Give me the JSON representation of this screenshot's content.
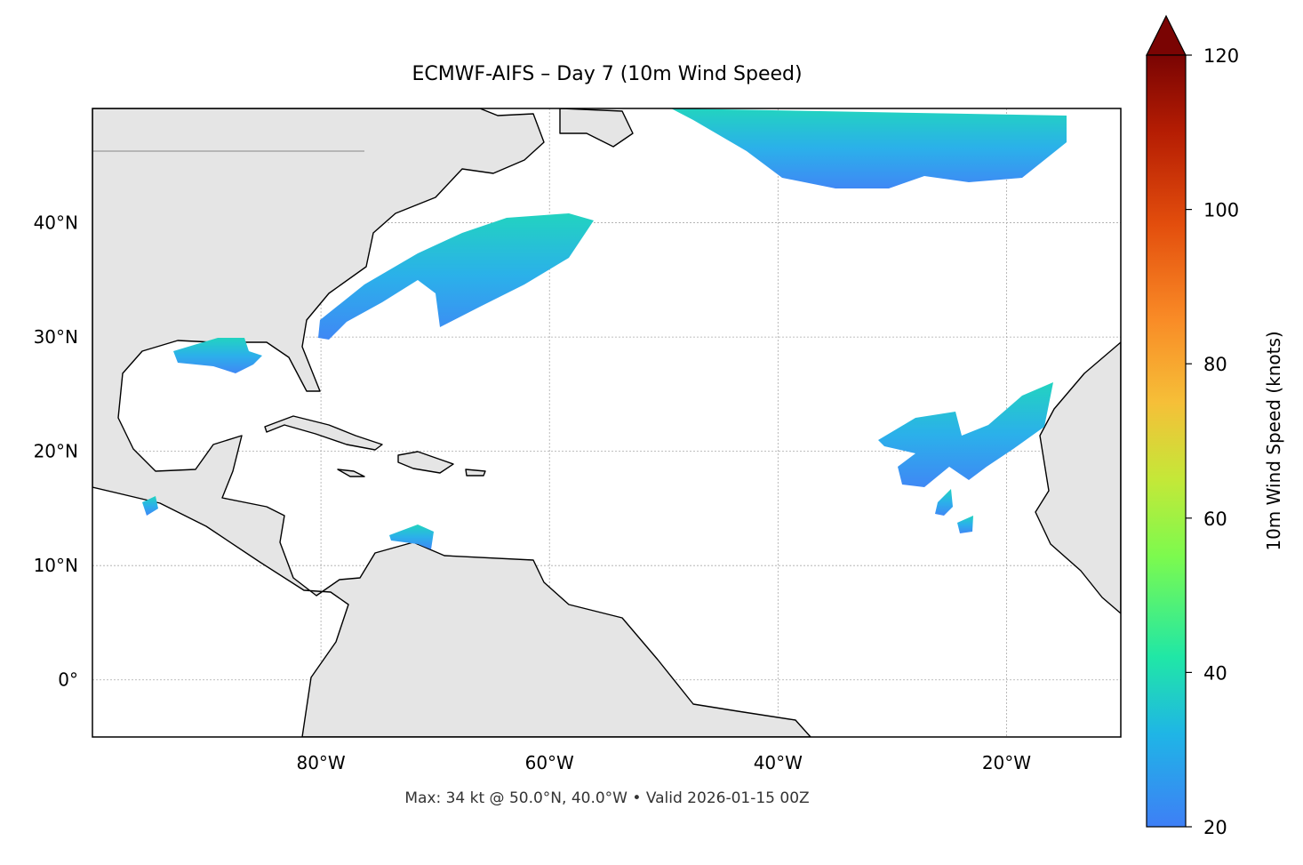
{
  "map": {
    "title": "ECMWF-AIFS – Day 7 (10m Wind Speed)",
    "lon_lim": [
      -100,
      -10
    ],
    "lat_lim": [
      -5,
      50
    ],
    "lon_ticks": [
      {
        "value": -80,
        "label": "80°W"
      },
      {
        "value": -60,
        "label": "60°W"
      },
      {
        "value": -40,
        "label": "40°W"
      },
      {
        "value": -20,
        "label": "20°W"
      }
    ],
    "lat_ticks": [
      {
        "value": 40,
        "label": "40°N"
      },
      {
        "value": 30,
        "label": "30°N"
      },
      {
        "value": 20,
        "label": "20°N"
      },
      {
        "value": 10,
        "label": "10°N"
      },
      {
        "value": 0,
        "label": "0°"
      }
    ],
    "colorbar": {
      "label": "10m Wind Speed (knots)",
      "range": [
        20,
        120
      ],
      "ticks": [
        20,
        40,
        60,
        80,
        100,
        120
      ]
    },
    "footer": "Max: 34 kt @ 50.0°N, 40.0°W • Valid 2026-01-15 00Z"
  }
}
